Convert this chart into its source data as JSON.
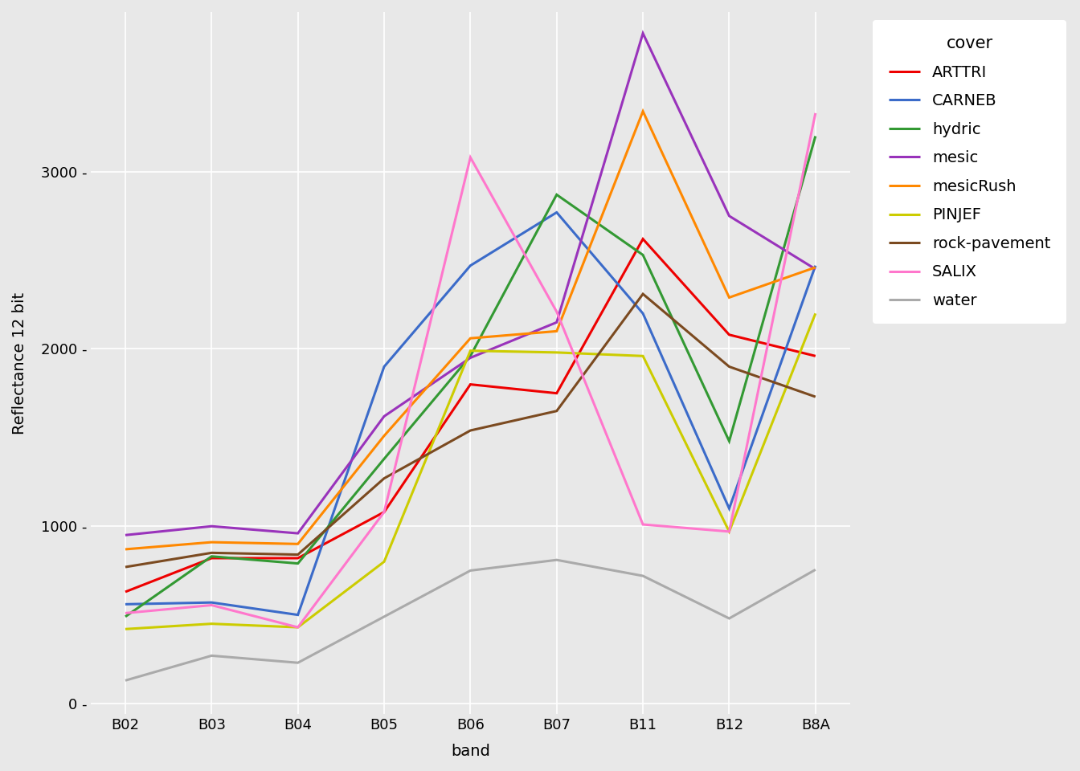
{
  "bands": [
    "B02",
    "B03",
    "B04",
    "B05",
    "B06",
    "B07",
    "B11",
    "B12",
    "B8A"
  ],
  "series": {
    "ARTTRI": {
      "color": "#EE0000",
      "values": [
        630,
        820,
        820,
        1080,
        1800,
        1750,
        2620,
        2080,
        1960
      ]
    },
    "CARNEB": {
      "color": "#3B6BC9",
      "values": [
        560,
        570,
        500,
        1900,
        2470,
        2770,
        2200,
        1100,
        2470
      ]
    },
    "hydric": {
      "color": "#339933",
      "values": [
        490,
        830,
        790,
        1380,
        1960,
        2870,
        2530,
        1480,
        3200
      ]
    },
    "mesic": {
      "color": "#9933BB",
      "values": [
        950,
        1000,
        960,
        1620,
        1950,
        2150,
        3780,
        2750,
        2450
      ]
    },
    "mesicRush": {
      "color": "#FF8800",
      "values": [
        870,
        910,
        900,
        1510,
        2060,
        2100,
        3340,
        2290,
        2460
      ]
    },
    "PINJEF": {
      "color": "#CCCC00",
      "values": [
        420,
        450,
        430,
        800,
        1990,
        1980,
        1960,
        970,
        2200
      ]
    },
    "rock-pavement": {
      "color": "#7B4A20",
      "values": [
        770,
        850,
        840,
        1270,
        1540,
        1650,
        2310,
        1900,
        1730
      ]
    },
    "SALIX": {
      "color": "#FF77CC",
      "values": [
        510,
        555,
        430,
        1080,
        3080,
        2210,
        1010,
        970,
        3330
      ]
    },
    "water": {
      "color": "#AAAAAA",
      "values": [
        130,
        270,
        230,
        490,
        750,
        810,
        720,
        480,
        755
      ]
    }
  },
  "xlabel": "band",
  "ylabel": "Reflectance 12 bit",
  "legend_title": "cover",
  "ylim": [
    -60,
    3900
  ],
  "yticks": [
    0,
    1000,
    2000,
    3000
  ],
  "background_color": "#E8E8E8",
  "plot_bg_color": "#E8E8E8",
  "grid_color": "#FFFFFF",
  "line_width": 2.2,
  "axis_fontsize": 14,
  "tick_fontsize": 13,
  "legend_fontsize": 14,
  "legend_title_fontsize": 15
}
